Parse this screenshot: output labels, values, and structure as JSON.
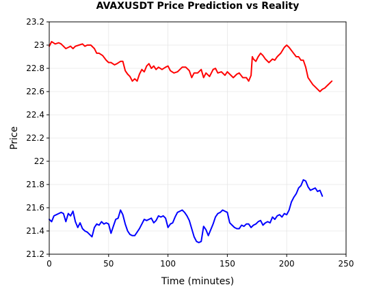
{
  "chart_data": {
    "type": "line",
    "title": "AVAXUSDT Price Prediction vs Reality",
    "xlabel": "Time (minutes)",
    "ylabel": "Price",
    "xlim": [
      0,
      250
    ],
    "ylim": [
      21.2,
      23.2
    ],
    "xticks": [
      0,
      50,
      100,
      150,
      200,
      250
    ],
    "yticks": [
      21.2,
      21.4,
      21.6,
      21.8,
      22.0,
      22.2,
      22.4,
      22.6,
      22.8,
      23.0,
      23.2
    ],
    "xtick_labels": [
      "0",
      "50",
      "100",
      "150",
      "200",
      "250"
    ],
    "ytick_labels": [
      "21.2",
      "21.4",
      "21.6",
      "21.8",
      "22",
      "22.2",
      "22.4",
      "22.6",
      "22.8",
      "23",
      "23.2"
    ],
    "grid": true,
    "legend": "none",
    "series": [
      {
        "color": "#ff0000",
        "x": [
          0,
          2,
          5,
          8,
          10,
          12,
          14,
          16,
          18,
          20,
          22,
          25,
          28,
          30,
          32,
          35,
          38,
          40,
          42,
          45,
          48,
          50,
          52,
          55,
          57,
          60,
          62,
          64,
          66,
          68,
          70,
          72,
          74,
          76,
          78,
          80,
          82,
          84,
          86,
          88,
          90,
          92,
          95,
          98,
          100,
          102,
          105,
          108,
          110,
          112,
          115,
          118,
          120,
          122,
          125,
          128,
          130,
          132,
          135,
          138,
          140,
          142,
          145,
          148,
          150,
          152,
          155,
          158,
          160,
          163,
          166,
          168,
          170,
          171,
          172,
          174,
          176,
          178,
          180,
          182,
          185,
          188,
          190,
          192,
          195,
          198,
          200,
          202,
          205,
          208,
          210,
          212,
          214,
          216,
          218,
          220,
          222,
          224,
          226,
          228,
          230,
          232,
          234,
          236,
          238
        ],
        "y": [
          22.99,
          23.03,
          23.01,
          23.02,
          23.01,
          22.99,
          22.97,
          22.98,
          22.99,
          22.97,
          22.99,
          23.0,
          23.01,
          22.99,
          23.0,
          23.0,
          22.97,
          22.93,
          22.93,
          22.91,
          22.87,
          22.85,
          22.85,
          22.83,
          22.84,
          22.86,
          22.86,
          22.78,
          22.75,
          22.73,
          22.69,
          22.71,
          22.69,
          22.75,
          22.79,
          22.77,
          22.82,
          22.84,
          22.8,
          22.82,
          22.79,
          22.81,
          22.79,
          22.81,
          22.82,
          22.78,
          22.76,
          22.77,
          22.79,
          22.81,
          22.81,
          22.78,
          22.72,
          22.76,
          22.76,
          22.79,
          22.72,
          22.76,
          22.73,
          22.79,
          22.8,
          22.76,
          22.77,
          22.74,
          22.77,
          22.75,
          22.72,
          22.75,
          22.76,
          22.72,
          22.72,
          22.69,
          22.74,
          22.9,
          22.88,
          22.86,
          22.9,
          22.93,
          22.91,
          22.88,
          22.85,
          22.88,
          22.87,
          22.9,
          22.93,
          22.98,
          23.0,
          22.98,
          22.94,
          22.9,
          22.9,
          22.87,
          22.87,
          22.81,
          22.72,
          22.69,
          22.66,
          22.64,
          22.62,
          22.6,
          22.62,
          22.63,
          22.65,
          22.67,
          22.69
        ]
      },
      {
        "color": "#0000ff",
        "x": [
          0,
          2,
          4,
          6,
          8,
          10,
          12,
          14,
          16,
          18,
          20,
          22,
          24,
          26,
          28,
          30,
          32,
          34,
          36,
          38,
          40,
          42,
          44,
          46,
          48,
          50,
          52,
          54,
          56,
          58,
          60,
          62,
          64,
          66,
          68,
          70,
          72,
          74,
          76,
          78,
          80,
          82,
          84,
          86,
          88,
          90,
          92,
          94,
          96,
          98,
          100,
          102,
          104,
          106,
          108,
          110,
          112,
          114,
          116,
          118,
          120,
          122,
          124,
          126,
          128,
          130,
          132,
          134,
          136,
          138,
          140,
          142,
          144,
          146,
          148,
          150,
          152,
          154,
          156,
          158,
          160,
          162,
          164,
          166,
          168,
          170,
          172,
          174,
          176,
          178,
          180,
          182,
          184,
          186,
          188,
          190,
          192,
          194,
          196,
          198,
          200,
          202,
          204,
          206,
          208,
          210,
          212,
          214,
          216,
          218,
          220,
          222,
          224,
          226,
          228,
          230
        ],
        "y": [
          21.5,
          21.48,
          21.53,
          21.54,
          21.55,
          21.56,
          21.55,
          21.48,
          21.55,
          21.53,
          21.57,
          21.48,
          21.43,
          21.47,
          21.42,
          21.4,
          21.39,
          21.37,
          21.35,
          21.43,
          21.46,
          21.45,
          21.48,
          21.46,
          21.47,
          21.46,
          21.38,
          21.44,
          21.5,
          21.51,
          21.58,
          21.54,
          21.46,
          21.4,
          21.37,
          21.36,
          21.36,
          21.39,
          21.42,
          21.46,
          21.5,
          21.49,
          21.5,
          21.51,
          21.47,
          21.49,
          21.53,
          21.52,
          21.53,
          21.51,
          21.43,
          21.46,
          21.47,
          21.52,
          21.56,
          21.57,
          21.58,
          21.56,
          21.53,
          21.49,
          21.42,
          21.35,
          21.31,
          21.3,
          21.31,
          21.44,
          21.41,
          21.36,
          21.41,
          21.46,
          21.52,
          21.55,
          21.56,
          21.58,
          21.57,
          21.56,
          21.47,
          21.45,
          21.43,
          21.42,
          21.42,
          21.45,
          21.44,
          21.46,
          21.46,
          21.43,
          21.45,
          21.46,
          21.48,
          21.49,
          21.45,
          21.47,
          21.48,
          21.47,
          21.52,
          21.5,
          21.53,
          21.54,
          21.52,
          21.55,
          21.54,
          21.58,
          21.65,
          21.69,
          21.72,
          21.77,
          21.79,
          21.84,
          21.83,
          21.78,
          21.75,
          21.76,
          21.77,
          21.74,
          21.75,
          21.7
        ]
      }
    ]
  }
}
